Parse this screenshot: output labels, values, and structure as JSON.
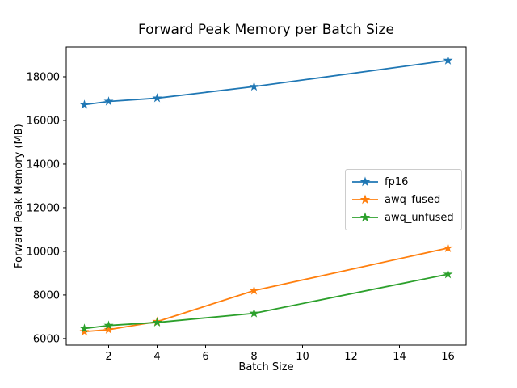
{
  "chart_data": {
    "type": "line",
    "title": "Forward Peak Memory per Batch Size",
    "xlabel": "Batch Size",
    "ylabel": "Forward Peak Memory (MB)",
    "x": [
      1,
      2,
      4,
      8,
      16
    ],
    "series": [
      {
        "name": "fp16",
        "color": "#1f77b4",
        "marker": "star",
        "values": [
          16720,
          16870,
          17020,
          17550,
          18750
        ]
      },
      {
        "name": "awq_fused",
        "color": "#ff7f0e",
        "marker": "star",
        "values": [
          6320,
          6410,
          6780,
          8200,
          10150
        ]
      },
      {
        "name": "awq_unfused",
        "color": "#2ca02c",
        "marker": "star",
        "values": [
          6460,
          6600,
          6740,
          7160,
          8950
        ]
      }
    ],
    "xticks": [
      2,
      4,
      6,
      8,
      10,
      12,
      14,
      16
    ],
    "yticks": [
      6000,
      8000,
      10000,
      12000,
      14000,
      16000,
      18000
    ],
    "xlim": [
      0.25,
      16.75
    ],
    "ylim": [
      5700,
      19370
    ],
    "grid": false,
    "legend_position": "center right",
    "background": "#ffffff",
    "text_color": "#000000"
  }
}
